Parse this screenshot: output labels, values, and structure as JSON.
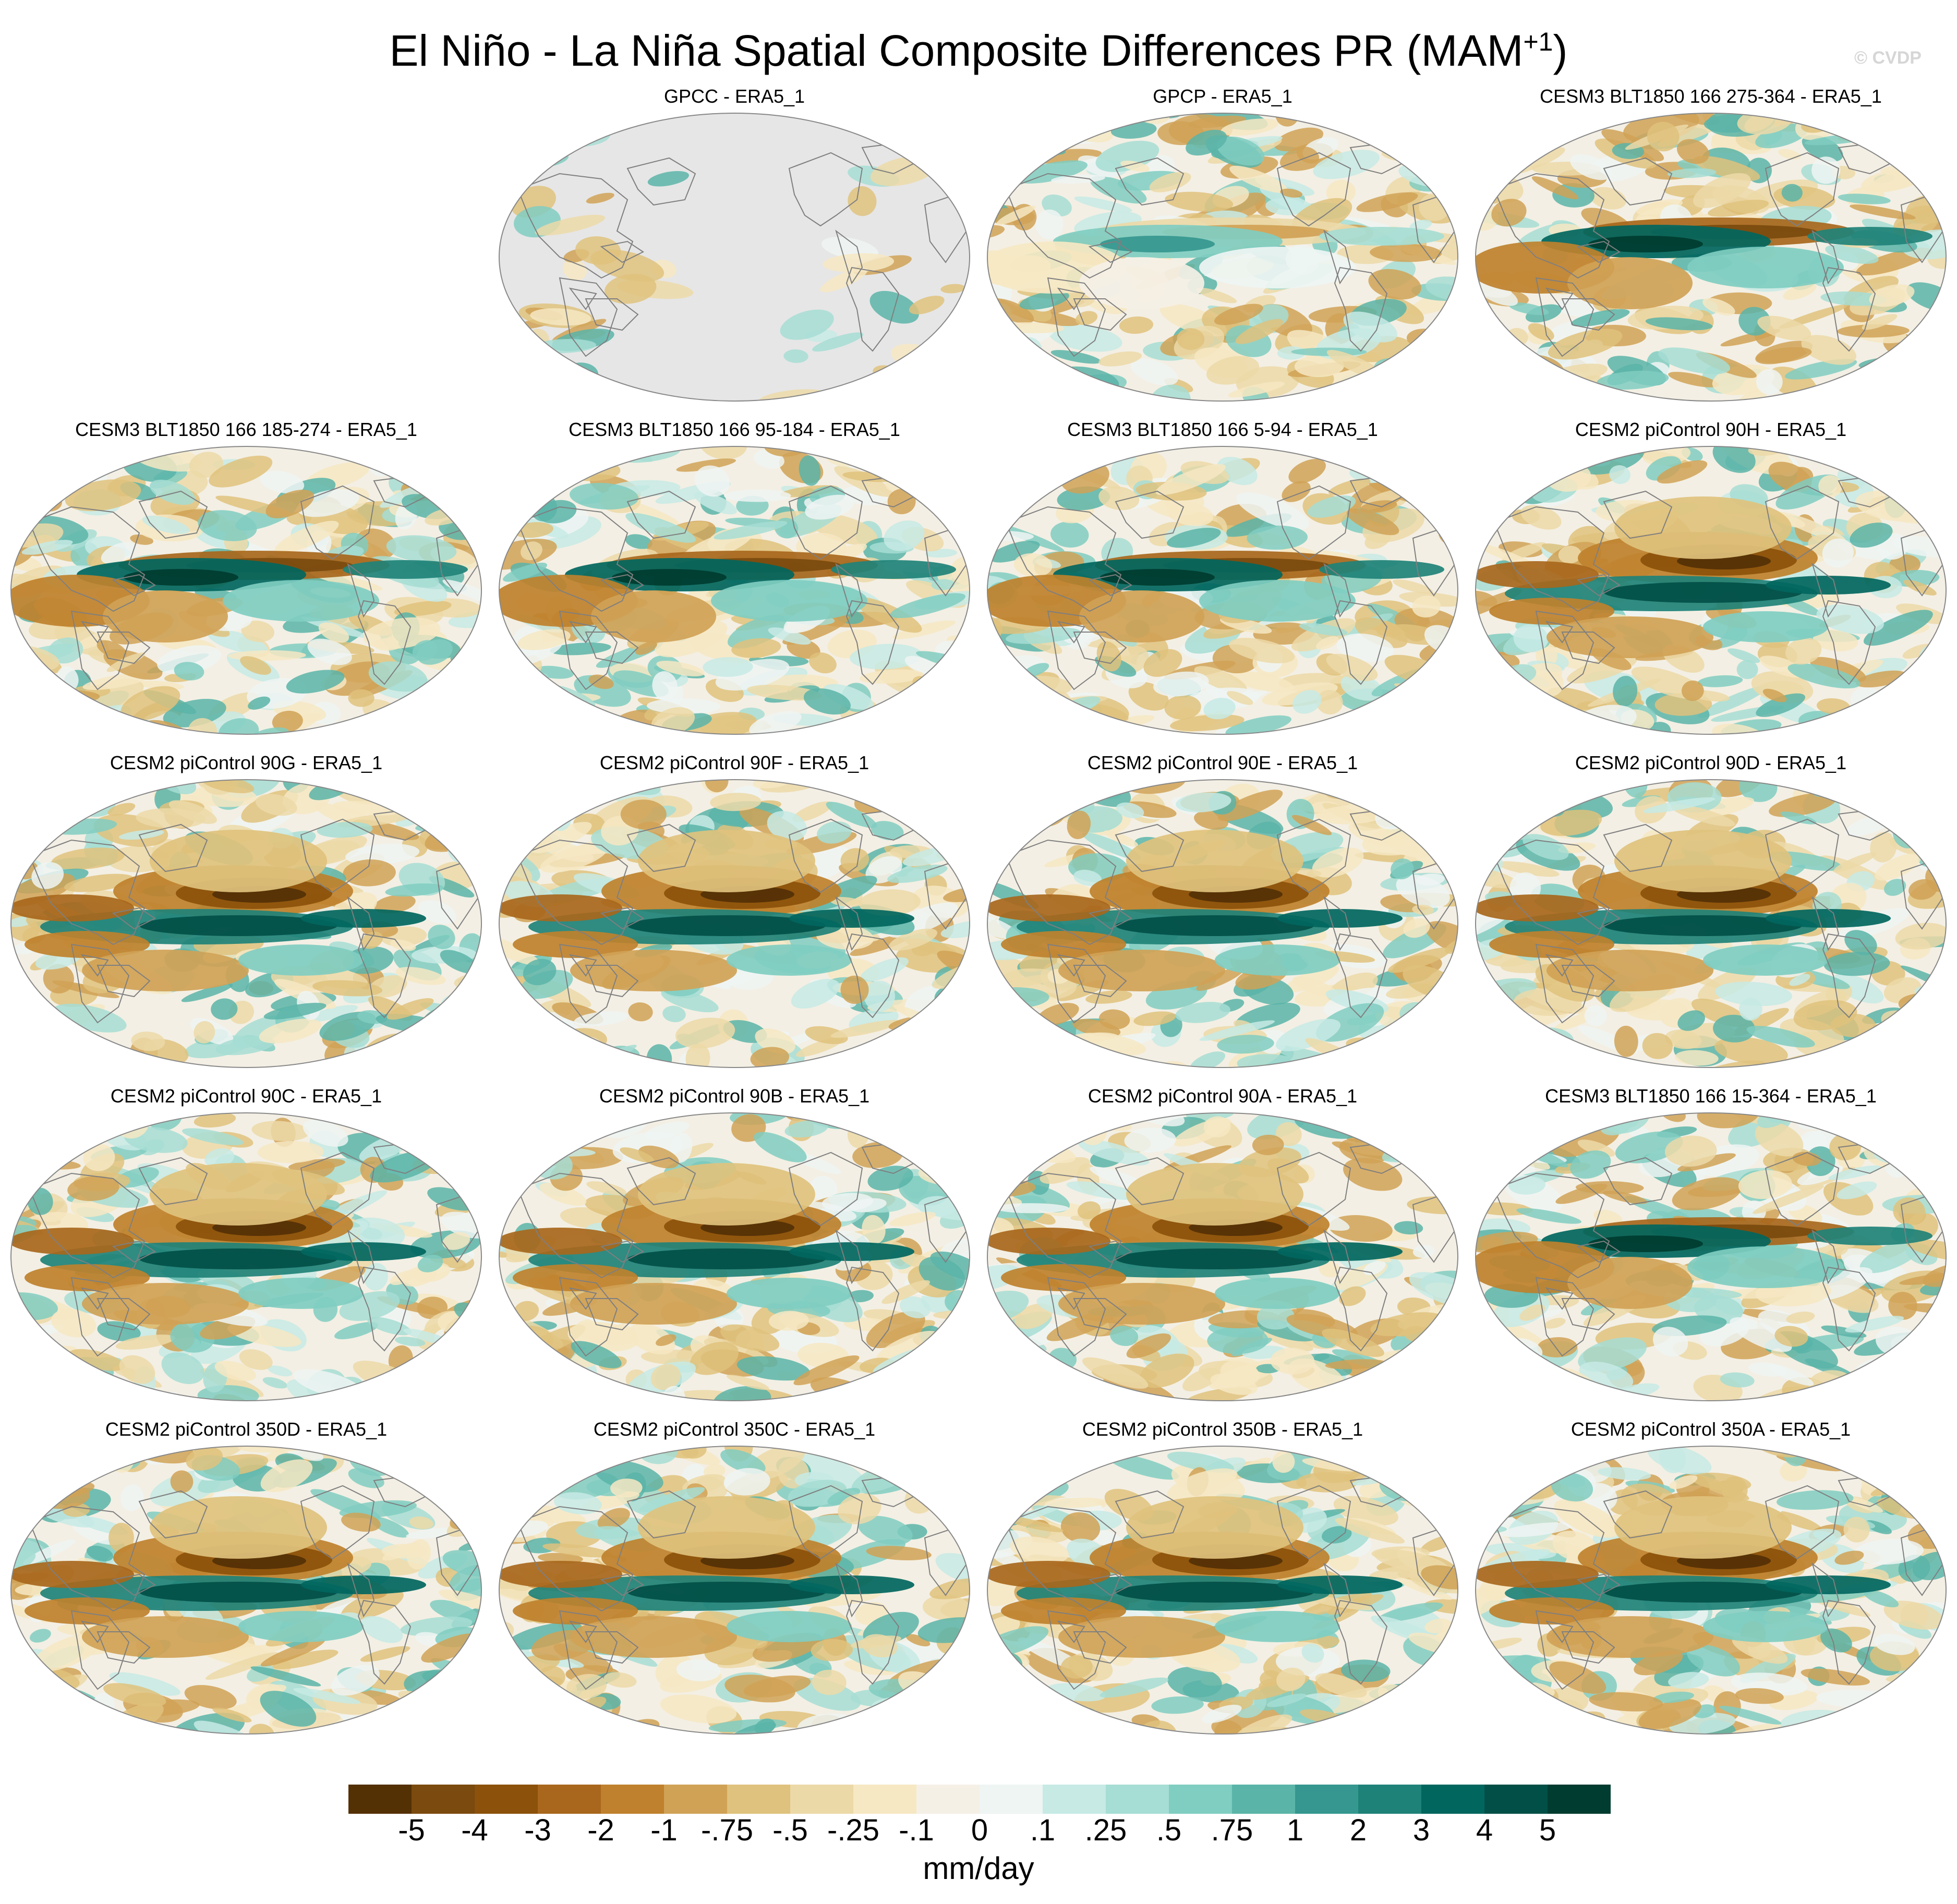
{
  "title": {
    "main": "El Niño - La Niña Spatial Composite Differences PR (MAM",
    "superscript": "+1",
    "close": ")"
  },
  "watermark": "© CVDP",
  "panels": [
    {
      "label": "GPCC - ERA5_1",
      "coverage": "land-only"
    },
    {
      "label": "GPCP - ERA5_1",
      "coverage": "global"
    },
    {
      "label": "CESM3 BLT1850 166 275-364 - ERA5_1",
      "coverage": "global"
    },
    {
      "label": "CESM3 BLT1850 166 185-274 - ERA5_1",
      "coverage": "global"
    },
    {
      "label": "CESM3 BLT1850 166 95-184 - ERA5_1",
      "coverage": "global"
    },
    {
      "label": "CESM3 BLT1850 166 5-94 - ERA5_1",
      "coverage": "global"
    },
    {
      "label": "CESM2 piControl 90H - ERA5_1",
      "coverage": "global"
    },
    {
      "label": "CESM2 piControl 90G - ERA5_1",
      "coverage": "global"
    },
    {
      "label": "CESM2 piControl 90F - ERA5_1",
      "coverage": "global"
    },
    {
      "label": "CESM2 piControl 90E - ERA5_1",
      "coverage": "global"
    },
    {
      "label": "CESM2 piControl 90D - ERA5_1",
      "coverage": "global"
    },
    {
      "label": "CESM2 piControl 90C - ERA5_1",
      "coverage": "global"
    },
    {
      "label": "CESM2 piControl 90B - ERA5_1",
      "coverage": "global"
    },
    {
      "label": "CESM2 piControl 90A - ERA5_1",
      "coverage": "global"
    },
    {
      "label": "CESM3 BLT1850 166 15-364 - ERA5_1",
      "coverage": "global"
    },
    {
      "label": "CESM2 piControl 350D - ERA5_1",
      "coverage": "global"
    },
    {
      "label": "CESM2 piControl 350C - ERA5_1",
      "coverage": "global"
    },
    {
      "label": "CESM2 piControl 350B - ERA5_1",
      "coverage": "global"
    },
    {
      "label": "CESM2 piControl 350A - ERA5_1",
      "coverage": "global"
    }
  ],
  "colorbar": {
    "colors": [
      "#543005",
      "#7a4a0e",
      "#8c510a",
      "#a8671c",
      "#bf812d",
      "#d0a256",
      "#dfc27d",
      "#ecd9a8",
      "#f6e8c3",
      "#f5f0e6",
      "#eef5f3",
      "#c7eae5",
      "#a6ddd4",
      "#80cdc1",
      "#5ab4a8",
      "#35978f",
      "#1f8278",
      "#01665e",
      "#024f47",
      "#003c30"
    ],
    "tick_labels": [
      "-5",
      "-4",
      "-3",
      "-2",
      "-1",
      "-.75",
      "-.5",
      "-.25",
      "-.1",
      "0",
      ".1",
      ".25",
      ".5",
      ".75",
      "1",
      "2",
      "3",
      "4",
      "5"
    ],
    "units": "mm/day"
  }
}
